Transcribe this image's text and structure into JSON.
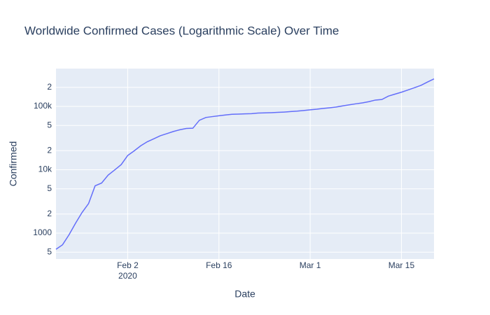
{
  "chart_data": {
    "type": "line",
    "title": "Worldwide Confirmed Cases (Logarithmic Scale) Over Time",
    "x_label": "Date",
    "y_label": "Confirmed",
    "x": [
      "2020-01-22",
      "2020-01-23",
      "2020-01-24",
      "2020-01-25",
      "2020-01-26",
      "2020-01-27",
      "2020-01-28",
      "2020-01-29",
      "2020-01-30",
      "2020-01-31",
      "2020-02-01",
      "2020-02-02",
      "2020-02-03",
      "2020-02-04",
      "2020-02-05",
      "2020-02-06",
      "2020-02-07",
      "2020-02-08",
      "2020-02-09",
      "2020-02-10",
      "2020-02-11",
      "2020-02-12",
      "2020-02-13",
      "2020-02-14",
      "2020-02-15",
      "2020-02-16",
      "2020-02-17",
      "2020-02-18",
      "2020-02-19",
      "2020-02-20",
      "2020-02-21",
      "2020-02-22",
      "2020-02-23",
      "2020-02-24",
      "2020-02-25",
      "2020-02-26",
      "2020-02-27",
      "2020-02-28",
      "2020-02-29",
      "2020-03-01",
      "2020-03-02",
      "2020-03-03",
      "2020-03-04",
      "2020-03-05",
      "2020-03-06",
      "2020-03-07",
      "2020-03-08",
      "2020-03-09",
      "2020-03-10",
      "2020-03-11",
      "2020-03-12",
      "2020-03-13",
      "2020-03-14",
      "2020-03-15",
      "2020-03-16",
      "2020-03-17",
      "2020-03-18",
      "2020-03-19",
      "2020-03-20"
    ],
    "series": [
      {
        "name": "Confirmed",
        "color": "#636efa",
        "values": [
          555,
          654,
          941,
          1434,
          2118,
          2927,
          5578,
          6166,
          8234,
          9927,
          12038,
          16787,
          19881,
          23892,
          27635,
          30794,
          34391,
          37120,
          40150,
          42762,
          44802,
          45221,
          60368,
          66885,
          69030,
          71224,
          73258,
          75136,
          75639,
          76197,
          76823,
          78579,
          78965,
          79568,
          80413,
          81395,
          82754,
          84120,
          86011,
          88369,
          90306,
          92840,
          95120,
          97886,
          101801,
          105847,
          109821,
          113590,
          118620,
          125875,
          128352,
          145205,
          156101,
          167454,
          181574,
          197102,
          214821,
          242500,
          272035
        ]
      }
    ],
    "xlim": [
      "2020-01-22",
      "2020-03-20"
    ],
    "xticks": [
      {
        "value": "2020-02-02",
        "label": "Feb 2"
      },
      {
        "value": "2020-02-16",
        "label": "Feb 16"
      },
      {
        "value": "2020-03-01",
        "label": "Mar 1"
      },
      {
        "value": "2020-03-15",
        "label": "Mar 15"
      }
    ],
    "x_year_label": "2020",
    "ylim": [
      390,
      395000
    ],
    "log_y": true,
    "grid": true,
    "yticks": [
      {
        "value": 500,
        "label": "5"
      },
      1000,
      {
        "value": 2000,
        "label": "2"
      },
      {
        "value": 5000,
        "label": "5"
      },
      {
        "value": 10000,
        "label": "10k"
      },
      {
        "value": 20000,
        "label": "2"
      },
      {
        "value": 50000,
        "label": "5"
      },
      {
        "value": 100000,
        "label": "100k"
      },
      {
        "value": 200000,
        "label": "2"
      }
    ]
  }
}
